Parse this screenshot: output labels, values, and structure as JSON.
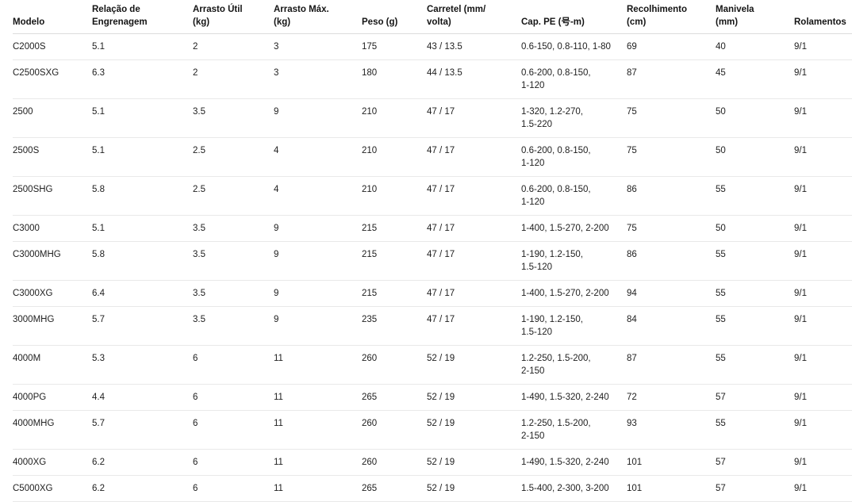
{
  "colors": {
    "background": "#ffffff",
    "header_text": "#141414",
    "body_text": "#212121",
    "header_border": "#dcdcdc",
    "row_border": "#e9e9e9"
  },
  "chart_data": {
    "type": "table",
    "title": "",
    "columns": [
      {
        "key": "modelo",
        "label": "Modelo"
      },
      {
        "key": "relacao",
        "label": "Relação de\nEngrenagem"
      },
      {
        "key": "arrasto_util",
        "label": "Arrasto Útil\n(kg)"
      },
      {
        "key": "arrasto_max",
        "label": "Arrasto Máx.\n(kg)"
      },
      {
        "key": "peso",
        "label": "Peso (g)"
      },
      {
        "key": "carretel",
        "label": "Carretel (mm/\nvolta)"
      },
      {
        "key": "cap_pe",
        "label": "Cap. PE (号-m)"
      },
      {
        "key": "recolhimento",
        "label": "Recolhimento\n(cm)"
      },
      {
        "key": "manivela",
        "label": "Manivela\n(mm)"
      },
      {
        "key": "rolamentos",
        "label": "Rolamentos"
      }
    ],
    "rows": [
      {
        "modelo": "C2000S",
        "relacao": "5.1",
        "arrasto_util": "2",
        "arrasto_max": "3",
        "peso": "175",
        "carretel": "43 / 13.5",
        "cap_pe": "0.6-150, 0.8-110, 1-80",
        "recolhimento": "69",
        "manivela": "40",
        "rolamentos": "9/1"
      },
      {
        "modelo": "C2500SXG",
        "relacao": "6.3",
        "arrasto_util": "2",
        "arrasto_max": "3",
        "peso": "180",
        "carretel": "44 / 13.5",
        "cap_pe": "0.6-200, 0.8-150,\n1-120",
        "recolhimento": "87",
        "manivela": "45",
        "rolamentos": "9/1"
      },
      {
        "modelo": "2500",
        "relacao": "5.1",
        "arrasto_util": "3.5",
        "arrasto_max": "9",
        "peso": "210",
        "carretel": "47 / 17",
        "cap_pe": "1-320, 1.2-270,\n1.5-220",
        "recolhimento": "75",
        "manivela": "50",
        "rolamentos": "9/1"
      },
      {
        "modelo": "2500S",
        "relacao": "5.1",
        "arrasto_util": "2.5",
        "arrasto_max": "4",
        "peso": "210",
        "carretel": "47 / 17",
        "cap_pe": "0.6-200, 0.8-150,\n1-120",
        "recolhimento": "75",
        "manivela": "50",
        "rolamentos": "9/1"
      },
      {
        "modelo": "2500SHG",
        "relacao": "5.8",
        "arrasto_util": "2.5",
        "arrasto_max": "4",
        "peso": "210",
        "carretel": "47 / 17",
        "cap_pe": "0.6-200, 0.8-150,\n1-120",
        "recolhimento": "86",
        "manivela": "55",
        "rolamentos": "9/1"
      },
      {
        "modelo": "C3000",
        "relacao": "5.1",
        "arrasto_util": "3.5",
        "arrasto_max": "9",
        "peso": "215",
        "carretel": "47 / 17",
        "cap_pe": "1-400, 1.5-270, 2-200",
        "recolhimento": "75",
        "manivela": "50",
        "rolamentos": "9/1"
      },
      {
        "modelo": "C3000MHG",
        "relacao": "5.8",
        "arrasto_util": "3.5",
        "arrasto_max": "9",
        "peso": "215",
        "carretel": "47 / 17",
        "cap_pe": "1-190, 1.2-150,\n1.5-120",
        "recolhimento": "86",
        "manivela": "55",
        "rolamentos": "9/1"
      },
      {
        "modelo": "C3000XG",
        "relacao": "6.4",
        "arrasto_util": "3.5",
        "arrasto_max": "9",
        "peso": "215",
        "carretel": "47 / 17",
        "cap_pe": "1-400, 1.5-270, 2-200",
        "recolhimento": "94",
        "manivela": "55",
        "rolamentos": "9/1"
      },
      {
        "modelo": "3000MHG",
        "relacao": "5.7",
        "arrasto_util": "3.5",
        "arrasto_max": "9",
        "peso": "235",
        "carretel": "47 / 17",
        "cap_pe": "1-190, 1.2-150,\n1.5-120",
        "recolhimento": "84",
        "manivela": "55",
        "rolamentos": "9/1"
      },
      {
        "modelo": "4000M",
        "relacao": "5.3",
        "arrasto_util": "6",
        "arrasto_max": "11",
        "peso": "260",
        "carretel": "52 / 19",
        "cap_pe": "1.2-250, 1.5-200,\n2-150",
        "recolhimento": "87",
        "manivela": "55",
        "rolamentos": "9/1"
      },
      {
        "modelo": "4000PG",
        "relacao": "4.4",
        "arrasto_util": "6",
        "arrasto_max": "11",
        "peso": "265",
        "carretel": "52 / 19",
        "cap_pe": "1-490, 1.5-320, 2-240",
        "recolhimento": "72",
        "manivela": "57",
        "rolamentos": "9/1"
      },
      {
        "modelo": "4000MHG",
        "relacao": "5.7",
        "arrasto_util": "6",
        "arrasto_max": "11",
        "peso": "260",
        "carretel": "52 / 19",
        "cap_pe": "1.2-250, 1.5-200,\n2-150",
        "recolhimento": "93",
        "manivela": "55",
        "rolamentos": "9/1"
      },
      {
        "modelo": "4000XG",
        "relacao": "6.2",
        "arrasto_util": "6",
        "arrasto_max": "11",
        "peso": "260",
        "carretel": "52 / 19",
        "cap_pe": "1-490, 1.5-320, 2-240",
        "recolhimento": "101",
        "manivela": "57",
        "rolamentos": "9/1"
      },
      {
        "modelo": "C5000XG",
        "relacao": "6.2",
        "arrasto_util": "6",
        "arrasto_max": "11",
        "peso": "265",
        "carretel": "52 / 19",
        "cap_pe": "1.5-400, 2-300, 3-200",
        "recolhimento": "101",
        "manivela": "57",
        "rolamentos": "9/1"
      }
    ]
  }
}
